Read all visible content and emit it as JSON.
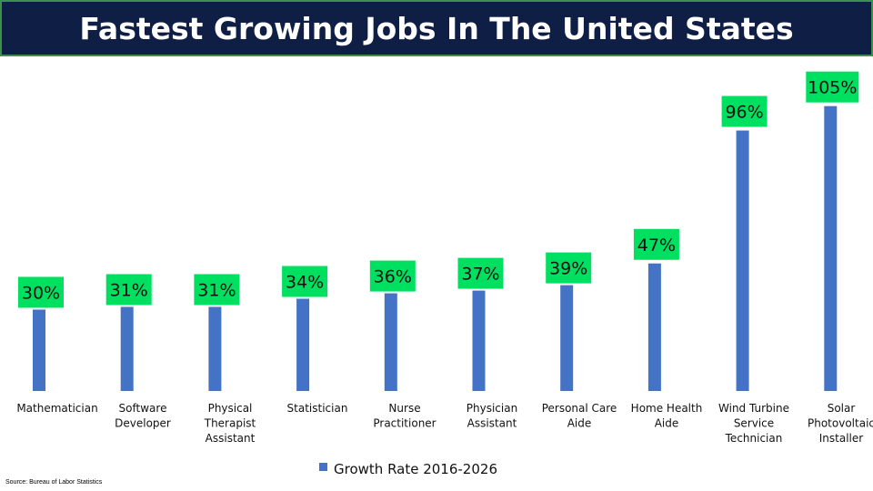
{
  "header": {
    "title": "Fastest Growing Jobs In The United States",
    "background": "#0f1e45",
    "border_color": "#3e8e4c"
  },
  "source_note": "Source: Bureau of Labor Statistics",
  "colors": {
    "bar": "#4472c4",
    "label_box": "#00e060"
  },
  "chart_data": {
    "type": "bar",
    "categories": [
      [
        "Mathematician"
      ],
      [
        "Software",
        "Developer"
      ],
      [
        "Physical",
        "Therapist",
        "Assistant"
      ],
      [
        "Statistician"
      ],
      [
        "Nurse",
        "Practitioner"
      ],
      [
        "Physician",
        "Assistant"
      ],
      [
        "Personal Care",
        "Aide"
      ],
      [
        "Home Health",
        "Aide"
      ],
      [
        "Wind Turbine",
        "Service",
        "Technician"
      ],
      [
        "Solar",
        "Photovoltaic",
        "Installer"
      ]
    ],
    "series": [
      {
        "name": "Growth Rate 2016-2026",
        "values": [
          30,
          31,
          31,
          34,
          36,
          37,
          39,
          47,
          96,
          105
        ],
        "labels": [
          "30%",
          "31%",
          "31%",
          "34%",
          "36%",
          "37%",
          "39%",
          "47%",
          "96%",
          "105%"
        ]
      }
    ],
    "ylim": [
      0,
      110
    ],
    "grid": false,
    "legend_position": "bottom"
  }
}
